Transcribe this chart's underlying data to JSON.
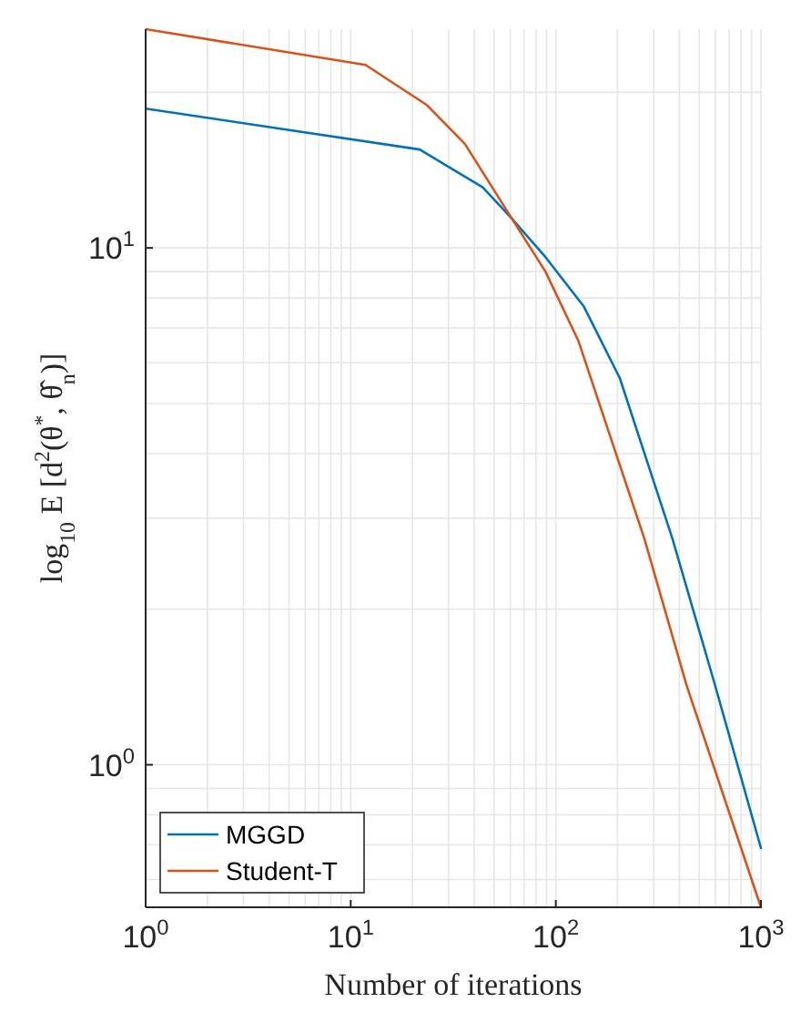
{
  "chart_data": {
    "type": "line",
    "xlabel": "Number of iterations",
    "ylabel": "log$_{10}$ E [d$^{2}$(θ$^{*}$, θ̂$_{n}$)]",
    "log": "xy",
    "grid": true,
    "legend": "bottom left",
    "xlim": [
      1,
      1000
    ],
    "ylim": [
      0.53,
      26.5
    ],
    "xticks": [
      {
        "value": 1,
        "label": "10$^{0}$"
      },
      {
        "value": 10,
        "label": "10$^{1}$"
      },
      {
        "value": 100,
        "label": "10$^{2}$"
      },
      {
        "value": 1000,
        "label": "10$^{3}$"
      }
    ],
    "yticks": [
      {
        "value": 1,
        "label": "10$^{0}$"
      },
      {
        "value": 10,
        "label": "10$^{1}$"
      }
    ],
    "series": [
      {
        "name": "MGGD",
        "color": "#0072bd",
        "x": [
          1,
          21.7,
          44,
          61,
          89,
          137,
          205,
          370,
          590,
          1000
        ],
        "values": [
          18.6,
          15.5,
          13.1,
          11.4,
          9.6,
          7.7,
          5.6,
          2.74,
          1.45,
          0.69
        ]
      },
      {
        "name": "Student-T",
        "color": "#d95319",
        "x": [
          1,
          11.8,
          23.5,
          36,
          61,
          89,
          129,
          270,
          435,
          1000
        ],
        "values": [
          26.5,
          22.6,
          18.9,
          15.9,
          11.4,
          9.0,
          6.6,
          2.74,
          1.42,
          0.53
        ]
      }
    ]
  }
}
